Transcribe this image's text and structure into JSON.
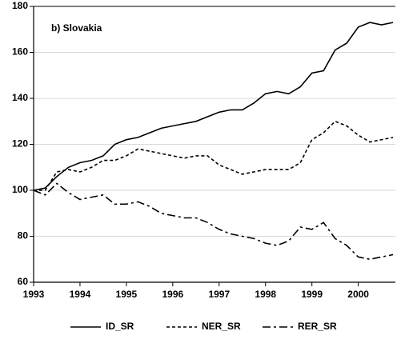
{
  "chart_data": {
    "type": "line",
    "title": "b) Slovakia",
    "x": [
      1993,
      1993.25,
      1993.5,
      1993.75,
      1994,
      1994.25,
      1994.5,
      1994.75,
      1995,
      1995.25,
      1995.5,
      1995.75,
      1996,
      1996.25,
      1996.5,
      1996.75,
      1997,
      1997.25,
      1997.5,
      1997.75,
      1998,
      1998.25,
      1998.5,
      1998.75,
      1999,
      1999.25,
      1999.5,
      1999.75,
      2000,
      2000.25,
      2000.5,
      2000.75
    ],
    "series": [
      {
        "name": "ID_SR",
        "color": "#000000",
        "dash": "solid",
        "values": [
          100,
          101,
          106,
          110,
          112,
          113,
          115,
          120,
          122,
          123,
          125,
          127,
          128,
          129,
          130,
          132,
          134,
          135,
          135,
          138,
          142,
          143,
          142,
          145,
          151,
          152,
          161,
          164,
          171,
          173,
          172,
          173
        ]
      },
      {
        "name": "NER_SR",
        "color": "#000000",
        "dash": "short",
        "values": [
          100,
          100,
          108,
          109,
          108,
          110,
          113,
          113,
          115,
          118,
          117,
          116,
          115,
          114,
          115,
          115,
          111,
          109,
          107,
          108,
          109,
          109,
          109,
          112,
          122,
          125,
          130,
          128,
          124,
          121,
          122,
          123
        ]
      },
      {
        "name": "RER_SR",
        "color": "#000000",
        "dash": "long",
        "values": [
          100,
          98,
          103,
          99,
          96,
          97,
          98,
          94,
          94,
          95,
          93,
          90,
          89,
          88,
          88,
          86,
          83,
          81,
          80,
          79,
          77,
          76,
          78,
          84,
          83,
          86,
          79,
          76,
          71,
          70,
          71,
          72
        ]
      }
    ],
    "xlim": [
      1993,
      2000.8
    ],
    "xticks": [
      1993,
      1994,
      1995,
      1996,
      1997,
      1998,
      1999,
      2000
    ],
    "ylim": [
      60,
      180
    ],
    "yticks": [
      60,
      80,
      100,
      120,
      140,
      160,
      180
    ],
    "grid": true
  }
}
